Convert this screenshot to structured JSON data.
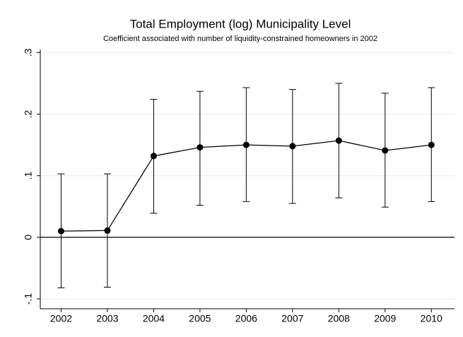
{
  "chart_data": {
    "type": "line",
    "title": "Total Employment (log) Municipality Level",
    "subtitle": "Coefficient associated with number of liquidity-constrained homeowners in 2002",
    "x": [
      2002,
      2003,
      2004,
      2005,
      2006,
      2007,
      2008,
      2009,
      2010
    ],
    "series": [
      {
        "color": "#000000",
        "values": [
          0.01,
          0.011,
          0.132,
          0.146,
          0.15,
          0.148,
          0.157,
          0.141,
          0.15
        ],
        "lower": [
          -0.082,
          -0.081,
          0.039,
          0.052,
          0.058,
          0.055,
          0.064,
          0.049,
          0.058
        ],
        "upper": [
          0.103,
          0.103,
          0.224,
          0.237,
          0.243,
          0.24,
          0.25,
          0.234,
          0.243
        ]
      }
    ],
    "xlim": [
      2001.55,
      2010.5
    ],
    "xticks": [
      2002,
      2003,
      2004,
      2005,
      2006,
      2007,
      2008,
      2009,
      2010
    ],
    "ylim": [
      -0.116,
      0.305
    ],
    "yticks": [
      {
        "value": -0.1,
        "label": "-.1"
      },
      0,
      {
        "value": 0.1,
        "label": ".1"
      },
      {
        "value": 0.2,
        "label": ".2"
      },
      {
        "value": 0.3,
        "label": ".3"
      }
    ],
    "grid": true,
    "reference_line": 0
  }
}
